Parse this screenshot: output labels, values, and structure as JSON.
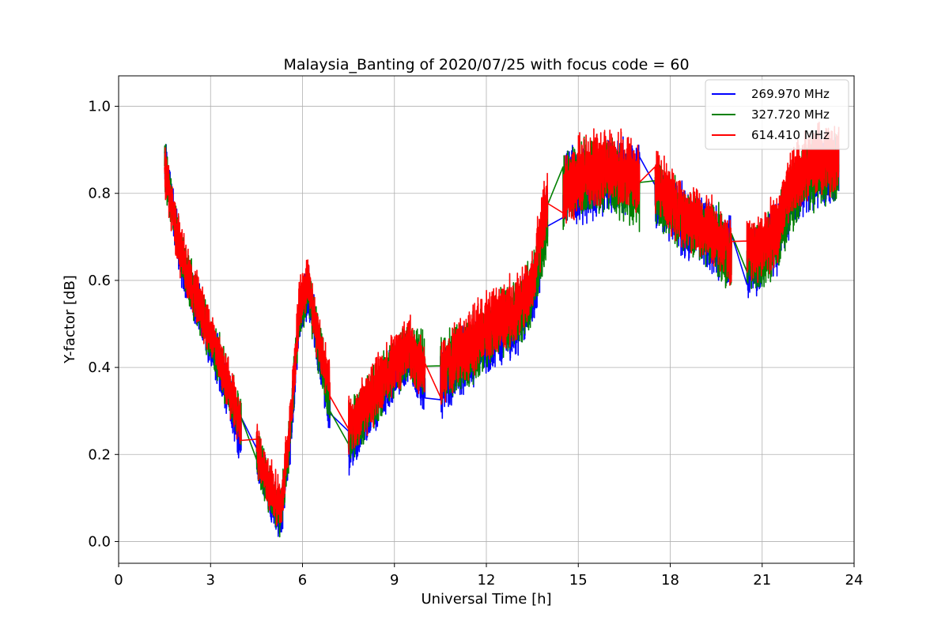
{
  "chart_data": {
    "type": "line",
    "title": "Malaysia_Banting of 2020/07/25 with focus code = 60",
    "xlabel": "Universal Time [h]",
    "ylabel": "Y-factor [dB]",
    "xlim": [
      0,
      24
    ],
    "ylim": [
      -0.05,
      1.07
    ],
    "xticks": [
      0,
      3,
      6,
      9,
      12,
      15,
      18,
      21,
      24
    ],
    "yticks": [
      0.0,
      0.2,
      0.4,
      0.6,
      0.8,
      1.0
    ],
    "xtick_labels": [
      "0",
      "3",
      "6",
      "9",
      "12",
      "15",
      "18",
      "21",
      "24"
    ],
    "ytick_labels": [
      "0.0",
      "0.2",
      "0.4",
      "0.6",
      "0.8",
      "1.0"
    ],
    "grid": true,
    "legend_position": "top-right",
    "series": [
      {
        "name": "269.970 MHz",
        "color": "#0000ff",
        "segments": [
          {
            "x": [
              1.5,
              2.0,
              2.5,
              3.0,
              3.5,
              4.0
            ],
            "y": [
              0.88,
              0.66,
              0.55,
              0.46,
              0.36,
              0.23
            ],
            "amp": 0.07
          },
          {
            "x": [
              4.5,
              4.9,
              5.3,
              5.6,
              5.9,
              6.2,
              6.5,
              6.9
            ],
            "y": [
              0.2,
              0.11,
              0.06,
              0.24,
              0.52,
              0.58,
              0.45,
              0.3
            ],
            "amp": 0.07
          },
          {
            "x": [
              7.5,
              8.0,
              8.5,
              9.0,
              9.5,
              10.0
            ],
            "y": [
              0.22,
              0.28,
              0.34,
              0.39,
              0.43,
              0.36
            ],
            "amp": 0.08
          },
          {
            "x": [
              10.5,
              11.0,
              11.5,
              12.0,
              12.5,
              13.0,
              13.5,
              14.0
            ],
            "y": [
              0.36,
              0.4,
              0.43,
              0.46,
              0.49,
              0.51,
              0.56,
              0.76
            ],
            "amp": 0.09
          },
          {
            "x": [
              14.5,
              15.0,
              15.5,
              16.0,
              16.5,
              17.0
            ],
            "y": [
              0.81,
              0.82,
              0.83,
              0.84,
              0.84,
              0.84
            ],
            "amp": 0.1
          },
          {
            "x": [
              17.5,
              18.0,
              18.5,
              19.0,
              19.5,
              20.0
            ],
            "y": [
              0.8,
              0.77,
              0.73,
              0.71,
              0.69,
              0.66
            ],
            "amp": 0.09
          },
          {
            "x": [
              20.5,
              21.0,
              21.5,
              22.0,
              22.5,
              23.0,
              23.5
            ],
            "y": [
              0.64,
              0.66,
              0.7,
              0.8,
              0.84,
              0.85,
              0.86
            ],
            "amp": 0.09
          }
        ]
      },
      {
        "name": "327.720 MHz",
        "color": "#008000",
        "segments": [
          {
            "x": [
              1.5,
              2.0,
              2.5,
              3.0,
              3.5,
              4.0
            ],
            "y": [
              0.87,
              0.67,
              0.56,
              0.47,
              0.37,
              0.27
            ],
            "amp": 0.07
          },
          {
            "x": [
              4.5,
              4.9,
              5.3,
              5.6,
              5.9,
              6.2,
              6.5,
              6.9
            ],
            "y": [
              0.21,
              0.12,
              0.07,
              0.25,
              0.53,
              0.58,
              0.46,
              0.32
            ],
            "amp": 0.07
          },
          {
            "x": [
              7.5,
              8.0,
              8.5,
              9.0,
              9.5,
              10.0
            ],
            "y": [
              0.24,
              0.3,
              0.35,
              0.4,
              0.44,
              0.41
            ],
            "amp": 0.08
          },
          {
            "x": [
              10.5,
              11.0,
              11.5,
              12.0,
              12.5,
              13.0,
              13.5,
              14.0
            ],
            "y": [
              0.38,
              0.42,
              0.44,
              0.47,
              0.5,
              0.52,
              0.57,
              0.74
            ],
            "amp": 0.09
          },
          {
            "x": [
              14.5,
              15.0,
              15.5,
              16.0,
              16.5,
              17.0
            ],
            "y": [
              0.8,
              0.83,
              0.84,
              0.84,
              0.83,
              0.8
            ],
            "amp": 0.1
          },
          {
            "x": [
              17.5,
              18.0,
              18.5,
              19.0,
              19.5,
              20.0
            ],
            "y": [
              0.8,
              0.77,
              0.74,
              0.72,
              0.7,
              0.64
            ],
            "amp": 0.09
          },
          {
            "x": [
              20.5,
              21.0,
              21.5,
              22.0,
              22.5,
              23.0,
              23.5
            ],
            "y": [
              0.64,
              0.66,
              0.7,
              0.8,
              0.84,
              0.85,
              0.86
            ],
            "amp": 0.09
          }
        ]
      },
      {
        "name": "614.410 MHz",
        "color": "#ff0000",
        "segments": [
          {
            "x": [
              1.5,
              2.0,
              2.5,
              3.0,
              3.5,
              4.0
            ],
            "y": [
              0.86,
              0.67,
              0.57,
              0.48,
              0.38,
              0.26
            ],
            "amp": 0.07
          },
          {
            "x": [
              4.5,
              4.9,
              5.3,
              5.6,
              5.9,
              6.2,
              6.5,
              6.9
            ],
            "y": [
              0.22,
              0.13,
              0.08,
              0.27,
              0.55,
              0.6,
              0.47,
              0.36
            ],
            "amp": 0.07
          },
          {
            "x": [
              7.5,
              8.0,
              8.5,
              9.0,
              9.5,
              10.0
            ],
            "y": [
              0.26,
              0.31,
              0.36,
              0.41,
              0.45,
              0.38
            ],
            "amp": 0.08
          },
          {
            "x": [
              10.5,
              11.0,
              11.5,
              12.0,
              12.5,
              13.0,
              13.5,
              14.0
            ],
            "y": [
              0.38,
              0.43,
              0.46,
              0.49,
              0.52,
              0.54,
              0.59,
              0.8
            ],
            "amp": 0.09
          },
          {
            "x": [
              14.5,
              15.0,
              15.5,
              16.0,
              16.5,
              17.0
            ],
            "y": [
              0.79,
              0.84,
              0.85,
              0.86,
              0.85,
              0.84
            ],
            "amp": 0.1
          },
          {
            "x": [
              17.5,
              18.0,
              18.5,
              19.0,
              19.5,
              20.0
            ],
            "y": [
              0.83,
              0.79,
              0.75,
              0.73,
              0.71,
              0.66
            ],
            "amp": 0.09
          },
          {
            "x": [
              20.5,
              21.0,
              21.5,
              22.0,
              22.5,
              23.0,
              23.5
            ],
            "y": [
              0.67,
              0.68,
              0.72,
              0.83,
              0.87,
              0.88,
              0.88
            ],
            "amp": 0.09
          }
        ]
      }
    ]
  }
}
